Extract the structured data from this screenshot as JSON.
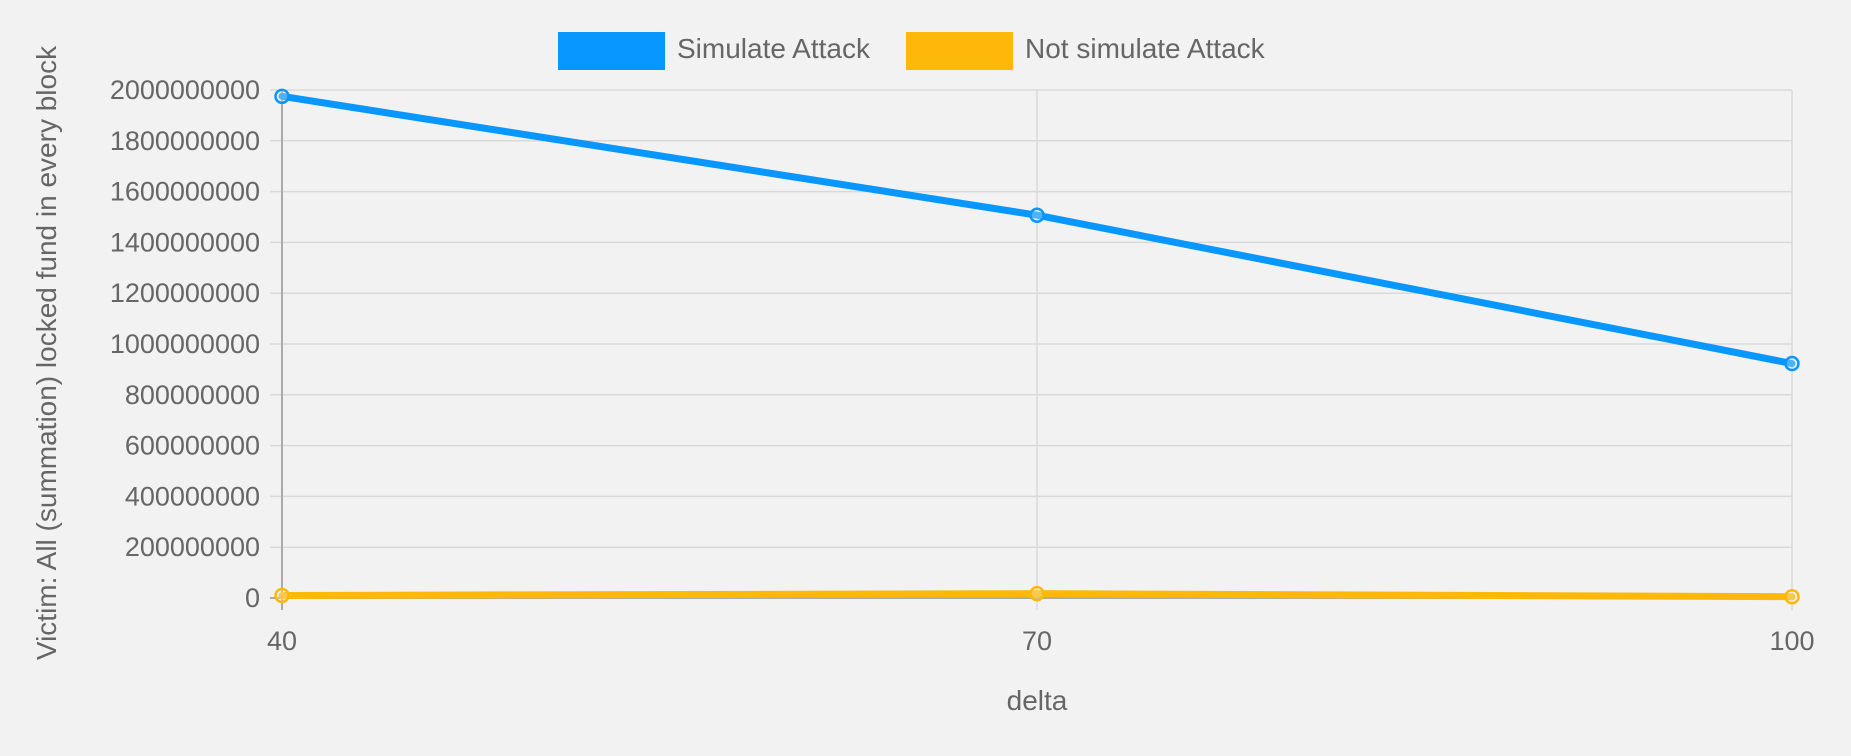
{
  "chart_data": {
    "type": "line",
    "x": [
      40,
      70,
      100
    ],
    "xlabel": "delta",
    "ylabel": "Victim: All (summation) locked fund in every block",
    "ylim": [
      0,
      2000000000
    ],
    "yticks": [
      "0",
      "200000000",
      "400000000",
      "600000000",
      "800000000",
      "1000000000",
      "1200000000",
      "1400000000",
      "1600000000",
      "1800000000",
      "2000000000"
    ],
    "xticks": [
      "40",
      "70",
      "100"
    ],
    "grid": true,
    "legend": "top-center",
    "series": [
      {
        "name": "Simulate Attack",
        "color": "#0896ff",
        "values": [
          1975000000,
          1507000000,
          923000000
        ]
      },
      {
        "name": "Not simulate Attack",
        "color": "#fdb809",
        "values": [
          10000000,
          17000000,
          5000000
        ]
      }
    ]
  }
}
